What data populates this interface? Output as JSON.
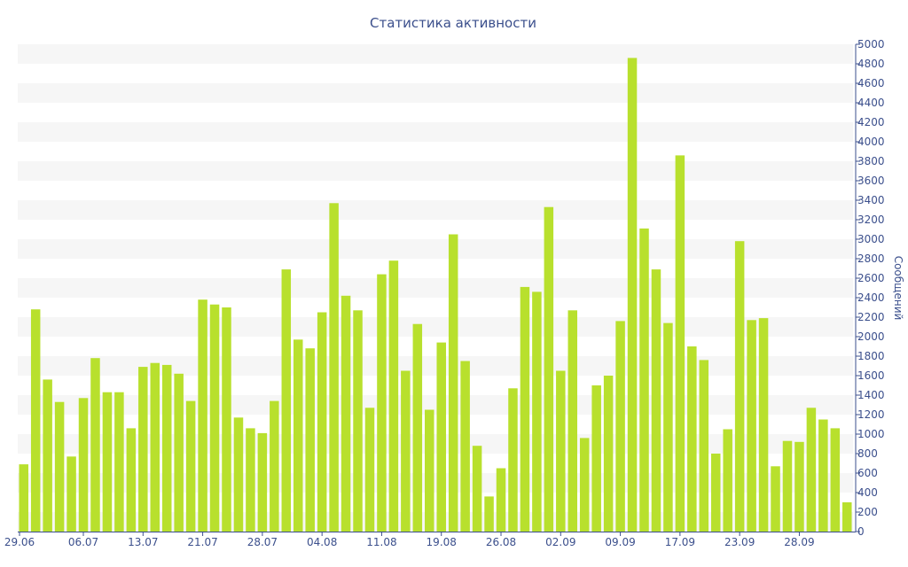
{
  "chart_data": {
    "type": "bar",
    "title": "Статистика активности",
    "ylabel": "Сообщений",
    "xlabel": "",
    "ylim": [
      0,
      5000
    ],
    "yticks": [
      0,
      200,
      400,
      600,
      800,
      1000,
      1200,
      1400,
      1600,
      1800,
      2000,
      2200,
      2400,
      2600,
      2800,
      3000,
      3200,
      3400,
      3600,
      3800,
      4000,
      4200,
      4400,
      4600,
      4800,
      5000
    ],
    "xtick_labels": [
      "29.06",
      "06.07",
      "13.07",
      "21.07",
      "28.07",
      "04.08",
      "11.08",
      "19.08",
      "26.08",
      "02.09",
      "09.09",
      "17.09",
      "23.09",
      "28.09"
    ],
    "xtick_indices": [
      0,
      5,
      10,
      15,
      20,
      25,
      30,
      35,
      40,
      45,
      50,
      55,
      60,
      65
    ],
    "grid": "horizontal bands",
    "colors": {
      "bar": "#b8e02d",
      "band": "#f6f6f6",
      "axis": "#3b4f8c",
      "text": "#3b4f8c"
    },
    "values": [
      690,
      2280,
      1560,
      1330,
      770,
      1370,
      1780,
      1430,
      1430,
      1060,
      1690,
      1730,
      1710,
      1620,
      1340,
      2380,
      2330,
      2300,
      1170,
      1060,
      1010,
      1340,
      2690,
      1970,
      1880,
      2250,
      3370,
      2420,
      2270,
      1270,
      2640,
      2780,
      1650,
      2130,
      1250,
      1940,
      3050,
      1750,
      880,
      360,
      650,
      1470,
      2510,
      2460,
      3330,
      1650,
      2270,
      960,
      1500,
      1600,
      2160,
      4860,
      3110,
      2690,
      2140,
      3860,
      1900,
      1760,
      800,
      1050,
      2980,
      2170,
      2190,
      670,
      930,
      920,
      1270,
      1150,
      1060,
      300
    ]
  }
}
